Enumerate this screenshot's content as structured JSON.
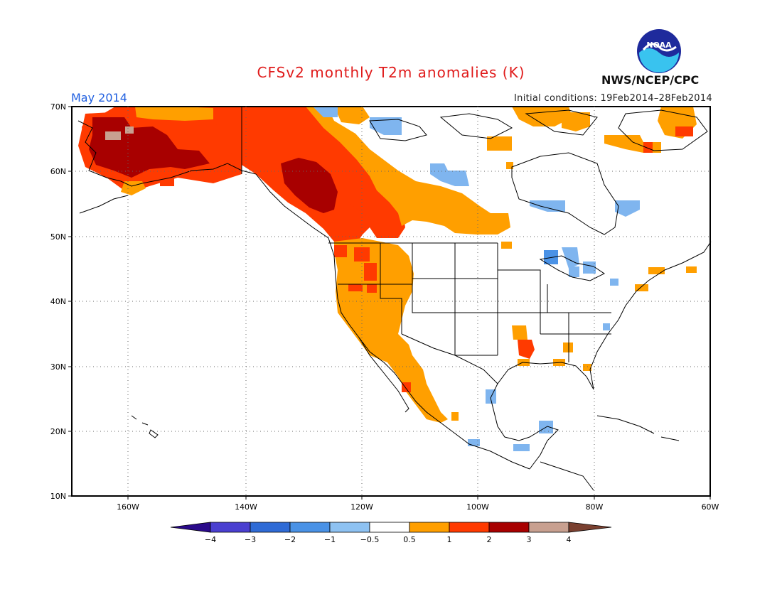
{
  "header": {
    "title": "CFSv2 monthly T2m anomalies (K)",
    "period": "May 2014",
    "initial_conditions": "Initial conditions: 19Feb2014–28Feb2014",
    "agency": "NWS/NCEP/CPC",
    "logo_text": "NOAA"
  },
  "map": {
    "lon_range": [
      -170,
      -60
    ],
    "lat_range": [
      10,
      70
    ],
    "lat_labels": [
      "70N",
      "60N",
      "50N",
      "40N",
      "30N",
      "20N",
      "10N"
    ],
    "lon_labels": [
      "160W",
      "140W",
      "120W",
      "100W",
      "80W",
      "60W"
    ],
    "grid": "dotted"
  },
  "legend": {
    "labels": [
      "−4",
      "−3",
      "−2",
      "−1",
      "−0.5",
      "0.5",
      "1",
      "2",
      "3",
      "4"
    ],
    "colors": [
      "#2a0a8a",
      "#4a3fd0",
      "#2f6bd6",
      "#4a92e6",
      "#8ec2f2",
      "#ffffff",
      "#ff9f00",
      "#ff3a00",
      "#a80000",
      "#c8a090",
      "#7a4030"
    ]
  },
  "anomaly_colors": {
    "warm1": "#ff9f00",
    "warm2": "#ff3a00",
    "warm3": "#a80000",
    "warm4": "#c8a090",
    "cool1": "#7fb5ef"
  }
}
